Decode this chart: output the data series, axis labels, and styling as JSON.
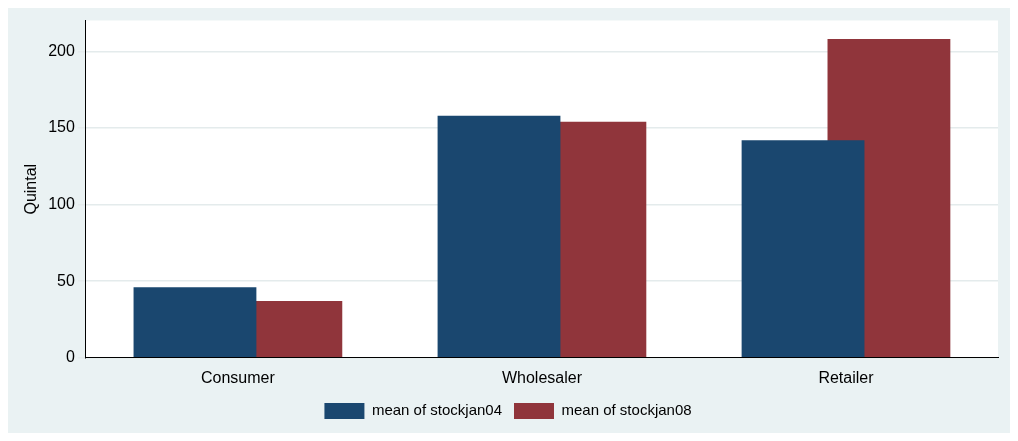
{
  "chart_data": {
    "type": "bar",
    "ylabel": "Quintal",
    "categories": [
      "Consumer",
      "Wholesaler",
      "Retailer"
    ],
    "series": [
      {
        "name": "mean of stockjan04",
        "color": "#1a476f",
        "values": [
          46,
          158,
          142
        ]
      },
      {
        "name": "mean of stockjan08",
        "color": "#90353b",
        "values": [
          37,
          154,
          208
        ]
      }
    ],
    "ylim": [
      0,
      220
    ],
    "yticks": [
      0,
      50,
      100,
      150,
      200
    ],
    "grid": "y",
    "legend": "bottom"
  }
}
